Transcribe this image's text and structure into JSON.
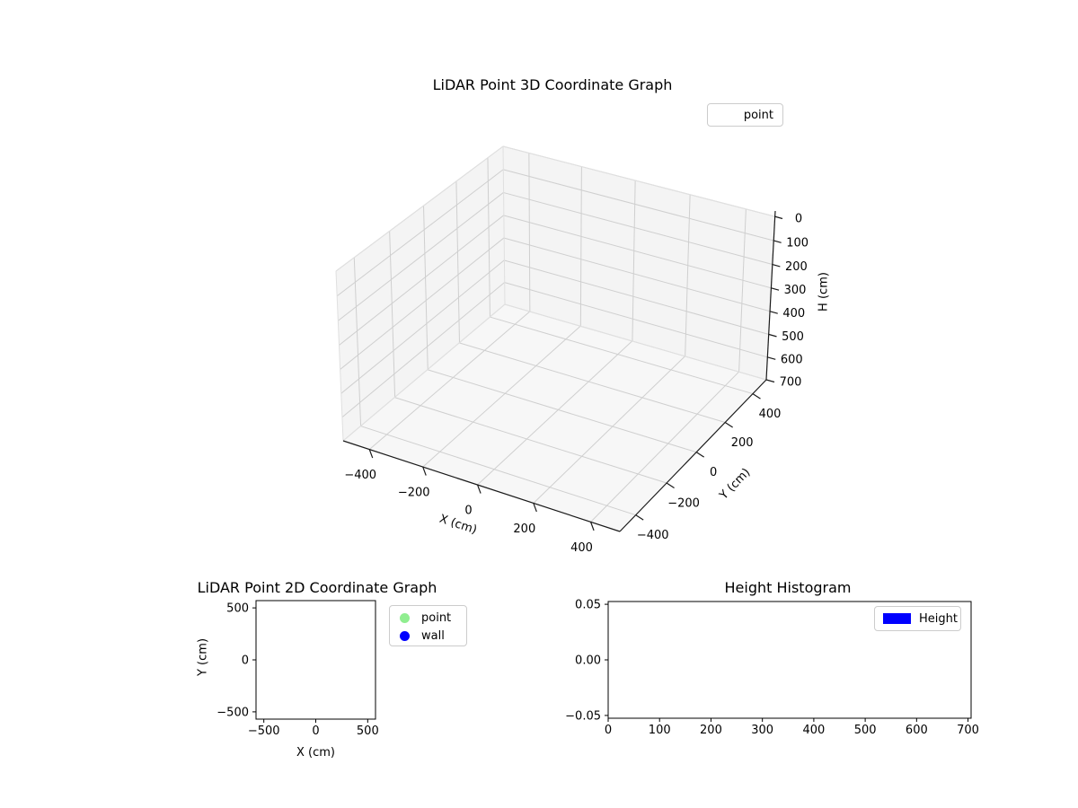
{
  "figure": {
    "background": "#ffffff",
    "text_color": "#000000",
    "pane_color": "#f4f4f4",
    "floor_color": "#f7f7f7",
    "grid_color": "#cfcfcf",
    "pane_edge_color": "#e0e0e0",
    "axis_line_color": "#1a1a1a"
  },
  "chart_data": [
    {
      "id": "lidar-3d",
      "type": "scatter3d",
      "title": "LiDAR Point 3D Coordinate Graph",
      "xlabel": "X (cm)",
      "ylabel": "Y (cm)",
      "zlabel": "H (cm)",
      "xlim": [
        -500,
        500
      ],
      "ylim": [
        -500,
        500
      ],
      "zlim": [
        0,
        700
      ],
      "zaxis_inverted": true,
      "grid": true,
      "xticks": [
        {
          "v": -400,
          "label": "−400"
        },
        {
          "v": -200,
          "label": "−200"
        },
        {
          "v": 0,
          "label": "0"
        },
        {
          "v": 200,
          "label": "200"
        },
        {
          "v": 400,
          "label": "400"
        }
      ],
      "yticks": [
        {
          "v": -400,
          "label": "−400"
        },
        {
          "v": -200,
          "label": "−200"
        },
        {
          "v": 0,
          "label": "0"
        },
        {
          "v": 200,
          "label": "200"
        },
        {
          "v": 400,
          "label": "400"
        }
      ],
      "zticks": [
        {
          "v": 0,
          "label": "0"
        },
        {
          "v": 100,
          "label": "100"
        },
        {
          "v": 200,
          "label": "200"
        },
        {
          "v": 300,
          "label": "300"
        },
        {
          "v": 400,
          "label": "400"
        },
        {
          "v": 500,
          "label": "500"
        },
        {
          "v": 600,
          "label": "600"
        },
        {
          "v": 700,
          "label": "700"
        }
      ],
      "legend": {
        "position": "upper right",
        "entries": [
          {
            "label": "point",
            "handle": "blank"
          }
        ]
      },
      "series": [
        {
          "name": "point",
          "points": []
        }
      ]
    },
    {
      "id": "lidar-2d",
      "type": "scatter",
      "title": "LiDAR Point 2D Coordinate Graph",
      "xlabel": "X (cm)",
      "ylabel": "Y (cm)",
      "xlim": [
        -575,
        575
      ],
      "ylim": [
        -570,
        570
      ],
      "grid": false,
      "xticks": [
        {
          "v": -500,
          "label": "−500"
        },
        {
          "v": 0,
          "label": "0"
        },
        {
          "v": 500,
          "label": "500"
        }
      ],
      "yticks": [
        {
          "v": 500,
          "label": "500"
        },
        {
          "v": 0,
          "label": "0"
        },
        {
          "v": -500,
          "label": "−500"
        }
      ],
      "legend": {
        "position": "outside upper right",
        "entries": [
          {
            "label": "point",
            "color": "#90ee90",
            "marker": "circle"
          },
          {
            "label": "wall",
            "color": "#0000ff",
            "marker": "circle"
          }
        ]
      },
      "series": [
        {
          "name": "point",
          "color": "#90ee90",
          "points": []
        },
        {
          "name": "wall",
          "color": "#0000ff",
          "points": []
        }
      ]
    },
    {
      "id": "height-histogram",
      "type": "bar",
      "title": "Height Histogram",
      "xlabel": "",
      "ylabel": "",
      "xlim": [
        0,
        706
      ],
      "ylim": [
        -0.0525,
        0.0525
      ],
      "grid": false,
      "xticks": [
        {
          "v": 0,
          "label": "0"
        },
        {
          "v": 100,
          "label": "100"
        },
        {
          "v": 200,
          "label": "200"
        },
        {
          "v": 300,
          "label": "300"
        },
        {
          "v": 400,
          "label": "400"
        },
        {
          "v": 500,
          "label": "500"
        },
        {
          "v": 600,
          "label": "600"
        },
        {
          "v": 700,
          "label": "700"
        }
      ],
      "yticks": [
        {
          "v": 0.05,
          "label": "0.05"
        },
        {
          "v": 0,
          "label": "0.00"
        },
        {
          "v": -0.05,
          "label": "−0.05"
        }
      ],
      "legend": {
        "position": "upper right",
        "entries": [
          {
            "label": "Height",
            "color": "#0000ff",
            "marker": "rect"
          }
        ]
      },
      "values": []
    }
  ]
}
